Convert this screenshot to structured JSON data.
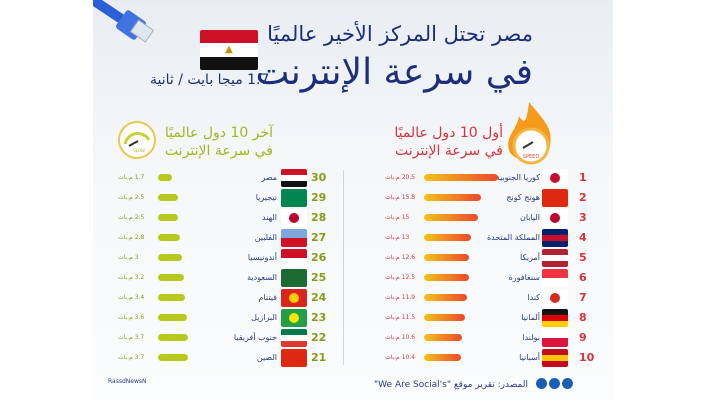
{
  "header": {
    "title_line1": "مصر تحتل المركز الأخير عالميًا",
    "title_line2": "في سرعة الإنترنت",
    "egypt_speed": "1.7 ميجا بايت / ثانية"
  },
  "top": {
    "heading_line1": "أول 10 دول عالميًا",
    "heading_line2": "في سرعة الإنترنت",
    "gauge_label": "SPEED",
    "color": "#e8452c",
    "rows": [
      {
        "rank": "1",
        "country": "كوريا الجنوبية",
        "value": 20.5,
        "label": "20.5 م.بات",
        "flag": "kr"
      },
      {
        "rank": "2",
        "country": "هونج كونج",
        "value": 15.8,
        "label": "15.8 م.بات",
        "flag": "hk"
      },
      {
        "rank": "3",
        "country": "اليابان",
        "value": 15,
        "label": "15 م.بات",
        "flag": "jp"
      },
      {
        "rank": "4",
        "country": "المملكة المتحدة",
        "value": 13,
        "label": "13 م.بات",
        "flag": "uk"
      },
      {
        "rank": "5",
        "country": "أمريكا",
        "value": 12.6,
        "label": "12.6 م.بات",
        "flag": "us"
      },
      {
        "rank": "6",
        "country": "سنغافورة",
        "value": 12.5,
        "label": "12.5 م.بات",
        "flag": "sg"
      },
      {
        "rank": "7",
        "country": "كندا",
        "value": 11.9,
        "label": "11.9 م.بات",
        "flag": "ca"
      },
      {
        "rank": "8",
        "country": "ألمانيا",
        "value": 11.5,
        "label": "11.5 م.بات",
        "flag": "de"
      },
      {
        "rank": "9",
        "country": "بولندا",
        "value": 10.6,
        "label": "10.6 م.بات",
        "flag": "pl"
      },
      {
        "rank": "10",
        "country": "أسبانيا",
        "value": 10.4,
        "label": "10.4 م.بات",
        "flag": "es"
      }
    ]
  },
  "bottom": {
    "heading_line1": "آخر 10 دول عالميًا",
    "heading_line2": "في سرعة الإنترنت",
    "gauge_label": "SLOW",
    "color": "#a9bd1c",
    "rows": [
      {
        "rank": "30",
        "country": "مصر",
        "value": 1.7,
        "label": "1.7 م.بات",
        "flag": "eg"
      },
      {
        "rank": "29",
        "country": "نيجيريا",
        "value": 2.5,
        "label": "2.5 م.بات",
        "flag": "ng"
      },
      {
        "rank": "28",
        "country": "الهند",
        "value": 2.5,
        "label": "2.5 م.بات",
        "flag": "jp"
      },
      {
        "rank": "27",
        "country": "الفلبين",
        "value": 2.8,
        "label": "2.8 م.بات",
        "flag": "ph"
      },
      {
        "rank": "26",
        "country": "أندونيسيا",
        "value": 3,
        "label": "3 م.بات",
        "flag": "id"
      },
      {
        "rank": "25",
        "country": "السعودية",
        "value": 3.2,
        "label": "3.2 م.بات",
        "flag": "sa"
      },
      {
        "rank": "24",
        "country": "فيتنام",
        "value": 3.4,
        "label": "3.4 م.بات",
        "flag": "vn"
      },
      {
        "rank": "23",
        "country": "البرازيل",
        "value": 3.6,
        "label": "3.6 م.بات",
        "flag": "br"
      },
      {
        "rank": "22",
        "country": "جنوب أفريقيا",
        "value": 3.7,
        "label": "3.7 م.بات",
        "flag": "za"
      },
      {
        "rank": "21",
        "country": "الصين",
        "value": 3.7,
        "label": "3.7 م.بات",
        "flag": "cn"
      }
    ]
  },
  "footer": {
    "source": "المصدر: تقرير موقع \"We Are Social's\"",
    "brand": "RassdNewsN"
  }
}
